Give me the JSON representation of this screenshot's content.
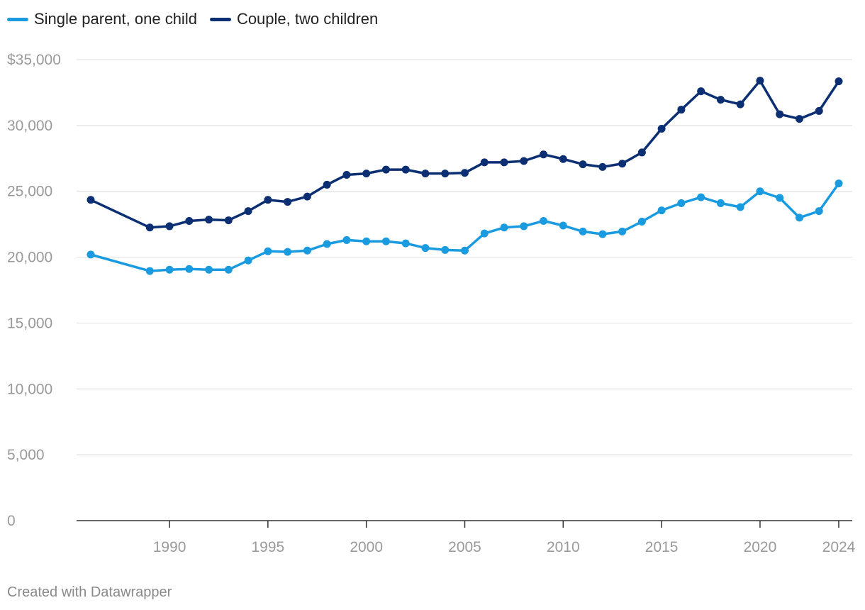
{
  "footer": "Created with Datawrapper",
  "colors": {
    "single": "#1a9be0",
    "couple": "#0b2f72",
    "grid": "#e2e2e2",
    "axis": "#333333",
    "tick": "#9a9a9a"
  },
  "chart_data": {
    "type": "line",
    "title": "",
    "xlabel": "",
    "ylabel": "",
    "ylim": [
      0,
      35000
    ],
    "xlim": [
      1986,
      2024
    ],
    "legend_placement": "top-left",
    "grid": true,
    "y_ticks": [
      0,
      5000,
      10000,
      15000,
      20000,
      25000,
      30000,
      35000
    ],
    "y_tick_labels": [
      "0",
      "5,000",
      "10,000",
      "15,000",
      "20,000",
      "25,000",
      "30,000",
      "$35,000"
    ],
    "x_ticks": [
      1990,
      1995,
      2000,
      2005,
      2010,
      2015,
      2020,
      2024
    ],
    "x_tick_labels": [
      "1990",
      "1995",
      "2000",
      "2005",
      "2010",
      "2015",
      "2020",
      "2024"
    ],
    "series": [
      {
        "name": "Single parent, one child",
        "color": "#1a9be0",
        "points": [
          [
            1986,
            20200
          ],
          [
            1989,
            18950
          ],
          [
            1990,
            19050
          ],
          [
            1991,
            19100
          ],
          [
            1992,
            19050
          ],
          [
            1993,
            19050
          ],
          [
            1994,
            19750
          ],
          [
            1995,
            20450
          ],
          [
            1996,
            20400
          ],
          [
            1997,
            20500
          ],
          [
            1998,
            21000
          ],
          [
            1999,
            21300
          ],
          [
            2000,
            21200
          ],
          [
            2001,
            21200
          ],
          [
            2002,
            21050
          ],
          [
            2003,
            20700
          ],
          [
            2004,
            20550
          ],
          [
            2005,
            20500
          ],
          [
            2006,
            21800
          ],
          [
            2007,
            22250
          ],
          [
            2008,
            22350
          ],
          [
            2009,
            22750
          ],
          [
            2010,
            22400
          ],
          [
            2011,
            21950
          ],
          [
            2012,
            21750
          ],
          [
            2013,
            21950
          ],
          [
            2014,
            22700
          ],
          [
            2015,
            23550
          ],
          [
            2016,
            24100
          ],
          [
            2017,
            24550
          ],
          [
            2018,
            24100
          ],
          [
            2019,
            23800
          ],
          [
            2020,
            25000
          ],
          [
            2021,
            24500
          ],
          [
            2022,
            23000
          ],
          [
            2023,
            23500
          ],
          [
            2024,
            25600
          ]
        ]
      },
      {
        "name": "Couple, two children",
        "color": "#0b2f72",
        "points": [
          [
            1986,
            24350
          ],
          [
            1989,
            22250
          ],
          [
            1990,
            22350
          ],
          [
            1991,
            22750
          ],
          [
            1992,
            22850
          ],
          [
            1993,
            22800
          ],
          [
            1994,
            23500
          ],
          [
            1995,
            24350
          ],
          [
            1996,
            24200
          ],
          [
            1997,
            24600
          ],
          [
            1998,
            25500
          ],
          [
            1999,
            26250
          ],
          [
            2000,
            26350
          ],
          [
            2001,
            26650
          ],
          [
            2002,
            26650
          ],
          [
            2003,
            26350
          ],
          [
            2004,
            26350
          ],
          [
            2005,
            26400
          ],
          [
            2006,
            27200
          ],
          [
            2007,
            27200
          ],
          [
            2008,
            27300
          ],
          [
            2009,
            27800
          ],
          [
            2010,
            27450
          ],
          [
            2011,
            27050
          ],
          [
            2012,
            26850
          ],
          [
            2013,
            27100
          ],
          [
            2014,
            27950
          ],
          [
            2015,
            29750
          ],
          [
            2016,
            31200
          ],
          [
            2017,
            32600
          ],
          [
            2018,
            31950
          ],
          [
            2019,
            31600
          ],
          [
            2020,
            33400
          ],
          [
            2021,
            30850
          ],
          [
            2022,
            30500
          ],
          [
            2023,
            31100
          ],
          [
            2024,
            33350
          ]
        ]
      }
    ]
  }
}
